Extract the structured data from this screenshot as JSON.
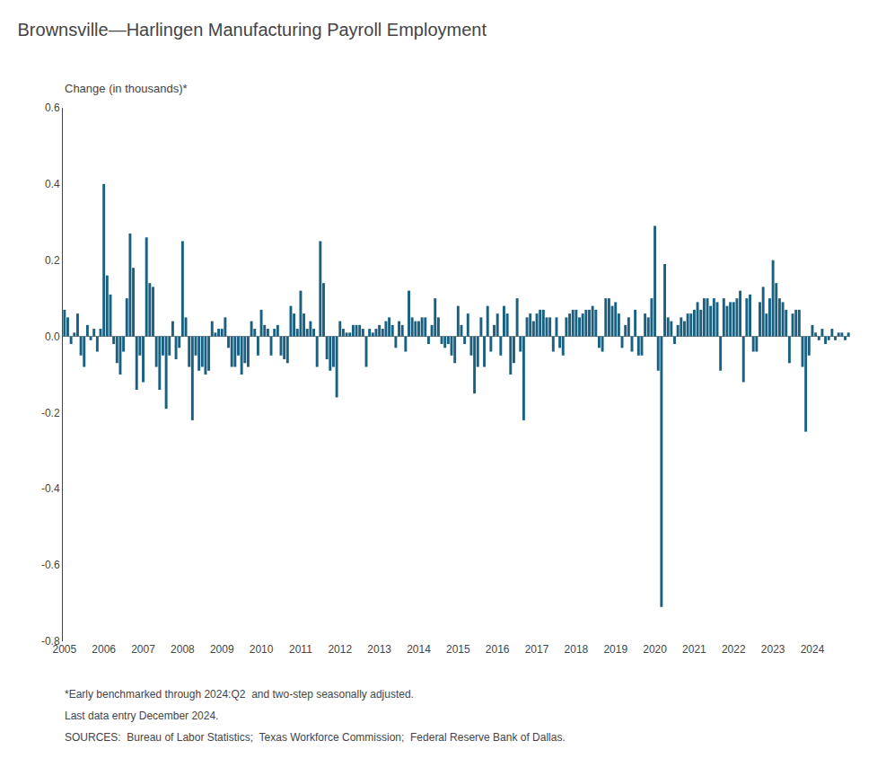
{
  "chart_data": {
    "type": "bar",
    "title": "Brownsville—Harlingen Manufacturing Payroll Employment",
    "ylabel": "Change (in thousands)*",
    "annotations": [
      "*Early benchmarked through 2024:Q2  and two-step seasonally adjusted.",
      "Last data entry December 2024.",
      "SOURCES:  Bureau of Labor Statistics;  Texas Workforce Commission;  Federal Reserve Bank of Dallas."
    ],
    "color": "#1a6080",
    "grid": false,
    "ylim": [
      -0.8,
      0.6
    ],
    "yticks": [
      -0.8,
      -0.6,
      -0.4,
      -0.2,
      {
        "value": 0.0,
        "label": "0.0"
      },
      0.2,
      0.4,
      0.6
    ],
    "categories": [
      "2005",
      null,
      null,
      null,
      null,
      null,
      null,
      null,
      null,
      null,
      null,
      null,
      "2006",
      null,
      null,
      null,
      null,
      null,
      null,
      null,
      null,
      null,
      null,
      null,
      "2007",
      null,
      null,
      null,
      null,
      null,
      null,
      null,
      null,
      null,
      null,
      null,
      "2008",
      null,
      null,
      null,
      null,
      null,
      null,
      null,
      null,
      null,
      null,
      null,
      "2009",
      null,
      null,
      null,
      null,
      null,
      null,
      null,
      null,
      null,
      null,
      null,
      "2010",
      null,
      null,
      null,
      null,
      null,
      null,
      null,
      null,
      null,
      null,
      null,
      "2011",
      null,
      null,
      null,
      null,
      null,
      null,
      null,
      null,
      null,
      null,
      null,
      "2012",
      null,
      null,
      null,
      null,
      null,
      null,
      null,
      null,
      null,
      null,
      null,
      "2013",
      null,
      null,
      null,
      null,
      null,
      null,
      null,
      null,
      null,
      null,
      null,
      "2014",
      null,
      null,
      null,
      null,
      null,
      null,
      null,
      null,
      null,
      null,
      null,
      "2015",
      null,
      null,
      null,
      null,
      null,
      null,
      null,
      null,
      null,
      null,
      null,
      "2016",
      null,
      null,
      null,
      null,
      null,
      null,
      null,
      null,
      null,
      null,
      null,
      "2017",
      null,
      null,
      null,
      null,
      null,
      null,
      null,
      null,
      null,
      null,
      null,
      "2018",
      null,
      null,
      null,
      null,
      null,
      null,
      null,
      null,
      null,
      null,
      null,
      "2019",
      null,
      null,
      null,
      null,
      null,
      null,
      null,
      null,
      null,
      null,
      null,
      "2020",
      null,
      null,
      null,
      null,
      null,
      null,
      null,
      null,
      null,
      null,
      null,
      "2021",
      null,
      null,
      null,
      null,
      null,
      null,
      null,
      null,
      null,
      null,
      null,
      "2022",
      null,
      null,
      null,
      null,
      null,
      null,
      null,
      null,
      null,
      null,
      null,
      "2023",
      null,
      null,
      null,
      null,
      null,
      null,
      null,
      null,
      null,
      null,
      null,
      "2024",
      null,
      null,
      null,
      null,
      null,
      null,
      null,
      null,
      null,
      null,
      null
    ],
    "values": [
      0.07,
      0.05,
      -0.02,
      0.01,
      0.06,
      -0.05,
      -0.08,
      0.03,
      -0.01,
      0.02,
      -0.04,
      0.02,
      0.4,
      0.16,
      0.11,
      -0.02,
      -0.07,
      -0.1,
      -0.04,
      0.1,
      0.27,
      0.18,
      -0.14,
      -0.05,
      -0.12,
      0.26,
      0.14,
      0.13,
      -0.08,
      -0.14,
      -0.05,
      -0.19,
      -0.05,
      0.04,
      -0.06,
      -0.03,
      0.25,
      0.05,
      -0.08,
      -0.22,
      -0.05,
      -0.09,
      -0.08,
      -0.1,
      -0.09,
      0.04,
      0.01,
      0.02,
      0.02,
      0.05,
      -0.03,
      -0.08,
      -0.08,
      -0.05,
      -0.1,
      -0.07,
      -0.08,
      0.04,
      0.02,
      -0.05,
      0.07,
      0.03,
      0.02,
      -0.05,
      0.02,
      0.03,
      -0.05,
      -0.06,
      -0.07,
      0.08,
      0.06,
      0.02,
      0.12,
      0.06,
      0.02,
      0.04,
      0.02,
      -0.08,
      0.25,
      0.14,
      -0.06,
      -0.09,
      -0.08,
      -0.16,
      0.04,
      0.02,
      0.01,
      0.01,
      0.03,
      0.03,
      0.03,
      0.02,
      -0.08,
      0.02,
      0.01,
      0.02,
      0.03,
      0.02,
      0.04,
      0.05,
      0.03,
      -0.03,
      0.04,
      0.03,
      -0.04,
      0.12,
      0.05,
      0.04,
      0.04,
      0.05,
      0.05,
      -0.02,
      0.03,
      0.1,
      0.05,
      -0.02,
      -0.03,
      -0.02,
      -0.05,
      -0.07,
      0.08,
      0.03,
      -0.02,
      0.06,
      -0.05,
      -0.15,
      -0.08,
      0.05,
      -0.08,
      0.08,
      -0.04,
      0.03,
      0.06,
      -0.05,
      0.08,
      0.06,
      -0.1,
      -0.07,
      0.1,
      -0.04,
      -0.22,
      0.05,
      0.06,
      0.04,
      0.06,
      0.07,
      0.07,
      0.05,
      0.05,
      -0.04,
      0.05,
      -0.03,
      -0.05,
      0.05,
      0.06,
      0.07,
      0.07,
      0.05,
      0.06,
      0.07,
      0.07,
      0.08,
      0.07,
      -0.03,
      -0.04,
      0.1,
      0.1,
      0.08,
      0.09,
      0.06,
      -0.03,
      0.03,
      0.05,
      -0.04,
      0.07,
      -0.05,
      -0.05,
      0.06,
      0.05,
      0.1,
      0.29,
      -0.09,
      -0.71,
      0.19,
      0.05,
      0.04,
      -0.02,
      0.03,
      0.05,
      0.04,
      0.06,
      0.06,
      0.07,
      0.09,
      0.07,
      0.1,
      0.1,
      0.08,
      0.1,
      0.09,
      -0.09,
      0.1,
      0.08,
      0.09,
      0.09,
      0.1,
      0.12,
      -0.12,
      0.1,
      0.11,
      -0.04,
      -0.04,
      0.09,
      0.13,
      0.06,
      0.1,
      0.2,
      0.14,
      0.1,
      0.09,
      0.07,
      -0.07,
      0.06,
      0.07,
      0.07,
      -0.08,
      -0.25,
      -0.05,
      0.03,
      0.01,
      -0.01,
      0.02,
      -0.02,
      -0.01,
      0.02,
      -0.01,
      0.01,
      0.01,
      -0.01,
      0.01
    ]
  }
}
